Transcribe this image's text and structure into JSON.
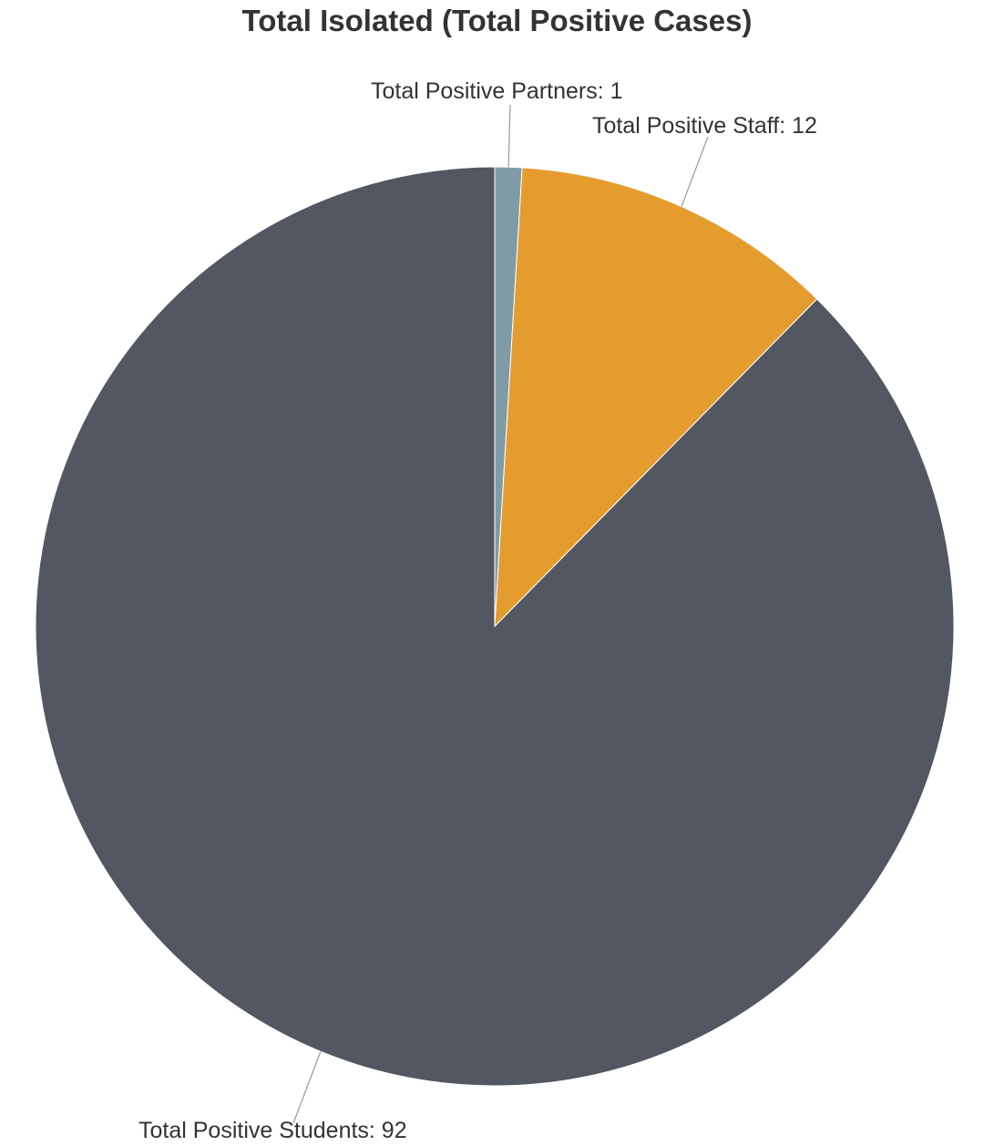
{
  "chart_data": {
    "type": "pie",
    "title": "Total Isolated (Total Positive Cases)",
    "slices": [
      {
        "label": "Total Positive Partners",
        "value": 1,
        "color": "#7f9ba8"
      },
      {
        "label": "Total Positive Staff",
        "value": 12,
        "color": "#e59c2f"
      },
      {
        "label": "Total Positive Students",
        "value": 92,
        "color": "#535762"
      }
    ],
    "start_angle": "top",
    "direction": "clockwise",
    "data_labels": true,
    "legend": "none"
  }
}
